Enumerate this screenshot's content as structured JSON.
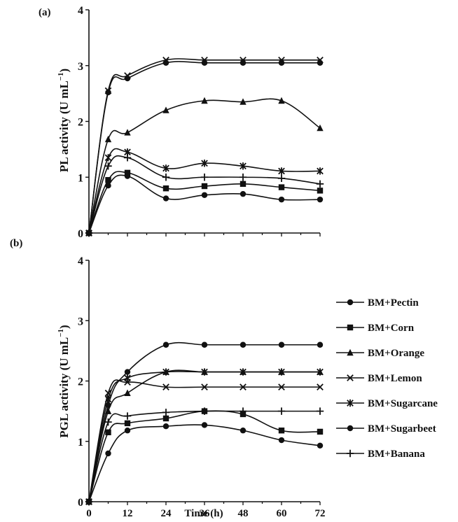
{
  "chart_data": [
    {
      "panel_label": "(a)",
      "type": "line",
      "ylabel": "PL activity (U mL",
      "ylabel_sup": "−1",
      "ylabel_close": ")",
      "xlabel": "",
      "ylim": [
        0,
        4
      ],
      "xlim": [
        0,
        72
      ],
      "yticks": [
        "0",
        "1",
        "2",
        "3",
        "4"
      ],
      "xticks": [],
      "grid": false,
      "x": [
        0,
        6,
        12,
        24,
        36,
        48,
        60,
        72
      ],
      "series": [
        {
          "marker": "circle",
          "values": [
            0,
            2.52,
            2.77,
            3.05,
            3.05,
            3.05,
            3.05,
            3.05
          ]
        },
        {
          "marker": "square",
          "values": [
            0,
            0.95,
            1.08,
            0.8,
            0.84,
            0.88,
            0.82,
            0.76
          ]
        },
        {
          "marker": "triangle",
          "values": [
            0,
            1.68,
            1.8,
            2.2,
            2.37,
            2.35,
            2.37,
            1.88
          ]
        },
        {
          "marker": "x",
          "values": [
            0,
            2.55,
            2.82,
            3.1,
            3.1,
            3.1,
            3.1,
            3.1
          ]
        },
        {
          "marker": "star",
          "values": [
            0,
            1.35,
            1.45,
            1.16,
            1.25,
            1.2,
            1.11,
            1.11
          ]
        },
        {
          "marker": "circle",
          "values": [
            0,
            0.85,
            1.02,
            0.62,
            0.68,
            0.7,
            0.6,
            0.6
          ]
        },
        {
          "marker": "plus",
          "values": [
            0,
            1.2,
            1.35,
            1.0,
            1.0,
            1.0,
            0.98,
            0.88
          ]
        }
      ]
    },
    {
      "panel_label": "(b)",
      "type": "line",
      "ylabel": "PGL activity (U mL",
      "ylabel_sup": "−1",
      "ylabel_close": ")",
      "xlabel": "Time (h)",
      "ylim": [
        0,
        4
      ],
      "xlim": [
        0,
        72
      ],
      "yticks": [
        "0",
        "1",
        "2",
        "3",
        "4"
      ],
      "xticks": [
        "0",
        "12",
        "24",
        "36",
        "48",
        "60",
        "72"
      ],
      "grid": false,
      "x": [
        0,
        6,
        12,
        24,
        36,
        48,
        60,
        72
      ],
      "legend_position": "right",
      "series": [
        {
          "name": "BM+Pectin",
          "marker": "circle",
          "values": [
            0,
            1.6,
            2.15,
            2.6,
            2.6,
            2.6,
            2.6,
            2.6
          ]
        },
        {
          "name": "BM+Corn",
          "marker": "square",
          "values": [
            0,
            1.15,
            1.3,
            1.38,
            1.5,
            1.45,
            1.18,
            1.16
          ]
        },
        {
          "name": "BM+Orange",
          "marker": "triangle",
          "values": [
            0,
            1.5,
            1.8,
            2.15,
            2.15,
            2.15,
            2.15,
            2.15
          ]
        },
        {
          "name": "BM+Lemon",
          "marker": "x",
          "values": [
            0,
            1.8,
            1.98,
            1.9,
            1.9,
            1.9,
            1.9,
            1.9
          ]
        },
        {
          "name": "BM+Sugarcane",
          "marker": "star",
          "values": [
            0,
            1.7,
            2.05,
            2.15,
            2.15,
            2.15,
            2.15,
            2.15
          ]
        },
        {
          "name": "BM+Sugarbeet",
          "marker": "circle",
          "values": [
            0,
            0.8,
            1.18,
            1.25,
            1.27,
            1.18,
            1.02,
            0.93
          ]
        },
        {
          "name": "BM+Banana",
          "marker": "plus",
          "values": [
            0,
            1.32,
            1.42,
            1.48,
            1.5,
            1.5,
            1.5,
            1.5
          ]
        }
      ]
    }
  ]
}
